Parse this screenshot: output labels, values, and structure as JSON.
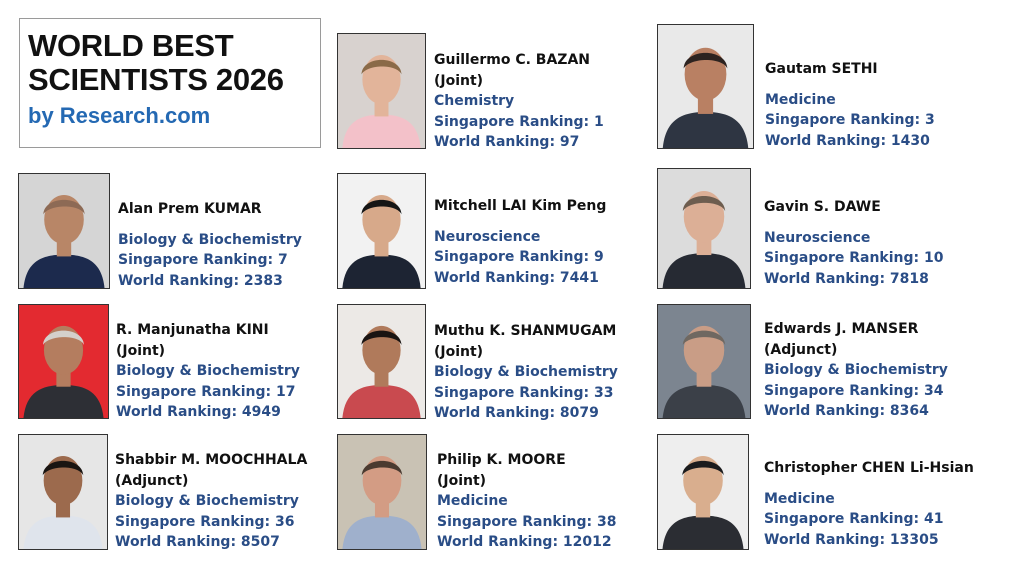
{
  "header": {
    "title_line1": "WORLD BEST",
    "title_line2": "SCIENTISTS 2026",
    "byline": "by Research.com"
  },
  "scientists": [
    {
      "name": "Guillermo C. BAZAN",
      "note": "(Joint)",
      "field": "Chemistry",
      "sg_rank": "Singapore Ranking: 1",
      "world_rank": "World Ranking: 97",
      "bg": "#d8d2cf",
      "skin": "#e2b49a",
      "hair": "#8a6a48",
      "shirt": "#f3c1c9"
    },
    {
      "name": "Gautam SETHI",
      "note": "",
      "field": "Medicine",
      "sg_rank": "Singapore Ranking: 3",
      "world_rank": "World Ranking: 1430",
      "bg": "#e9e9e9",
      "skin": "#b98063",
      "hair": "#2d2320",
      "shirt": "#2e3542"
    },
    {
      "name": "Alan Prem KUMAR",
      "note": "",
      "field": "Biology & Biochemistry",
      "sg_rank": "Singapore Ranking: 7",
      "world_rank": "World Ranking: 2383",
      "bg": "#d5d5d5",
      "skin": "#b88667",
      "hair": "#8d6a55",
      "shirt": "#1c2a4d"
    },
    {
      "name": "Mitchell LAI Kim Peng",
      "note": "",
      "field": "Neuroscience",
      "sg_rank": "Singapore Ranking: 9",
      "world_rank": "World Ranking: 7441",
      "bg": "#f2f2f2",
      "skin": "#d7a98a",
      "hair": "#151515",
      "shirt": "#1d2433"
    },
    {
      "name": "Gavin S. DAWE",
      "note": "",
      "field": "Neuroscience",
      "sg_rank": "Singapore Ranking: 10",
      "world_rank": "World Ranking: 7818",
      "bg": "#dcdcdc",
      "skin": "#dcaf96",
      "hair": "#6d5d4f",
      "shirt": "#262a33"
    },
    {
      "name": "R. Manjunatha KINI",
      "note": "(Joint)",
      "field": "Biology & Biochemistry",
      "sg_rank": "Singapore Ranking: 17",
      "world_rank": "World Ranking: 4949",
      "bg": "#e32a30",
      "skin": "#b47d5f",
      "hair": "#d4d0cb",
      "shirt": "#2d2f35"
    },
    {
      "name": "Muthu K. SHANMUGAM",
      "note": "(Joint)",
      "field": "Biology & Biochemistry",
      "sg_rank": "Singapore Ranking: 33",
      "world_rank": "World Ranking: 8079",
      "bg": "#ece9e6",
      "skin": "#b07a5b",
      "hair": "#1a1412",
      "shirt": "#c94a4f"
    },
    {
      "name": "Edwards J. MANSER",
      "note": "(Adjunct)",
      "field": "Biology & Biochemistry",
      "sg_rank": "Singapore Ranking: 34",
      "world_rank": "World Ranking: 8364",
      "bg": "#7c8590",
      "skin": "#c99d86",
      "hair": "#6f6861",
      "shirt": "#3b4048"
    },
    {
      "name": "Shabbir M. MOOCHHALA",
      "note": "(Adjunct)",
      "field": "Biology & Biochemistry",
      "sg_rank": "Singapore Ranking: 36",
      "world_rank": "World Ranking: 8507",
      "bg": "#e6e6e6",
      "skin": "#9c6a4d",
      "hair": "#1a1512",
      "shirt": "#dfe4ec"
    },
    {
      "name": "Philip K. MOORE",
      "note": "(Joint)",
      "field": "Medicine",
      "sg_rank": "Singapore Ranking: 38",
      "world_rank": "World Ranking: 12012",
      "bg": "#c9c2b4",
      "skin": "#d39c84",
      "hair": "#4a3a30",
      "shirt": "#9fb0cc"
    },
    {
      "name": "Christopher CHEN Li-Hsian",
      "note": "",
      "field": "Medicine",
      "sg_rank": "Singapore Ranking: 41",
      "world_rank": "World Ranking: 13305",
      "bg": "#eeeeee",
      "skin": "#d9ae8e",
      "hair": "#1b1b1d",
      "shirt": "#2b2d33"
    }
  ]
}
